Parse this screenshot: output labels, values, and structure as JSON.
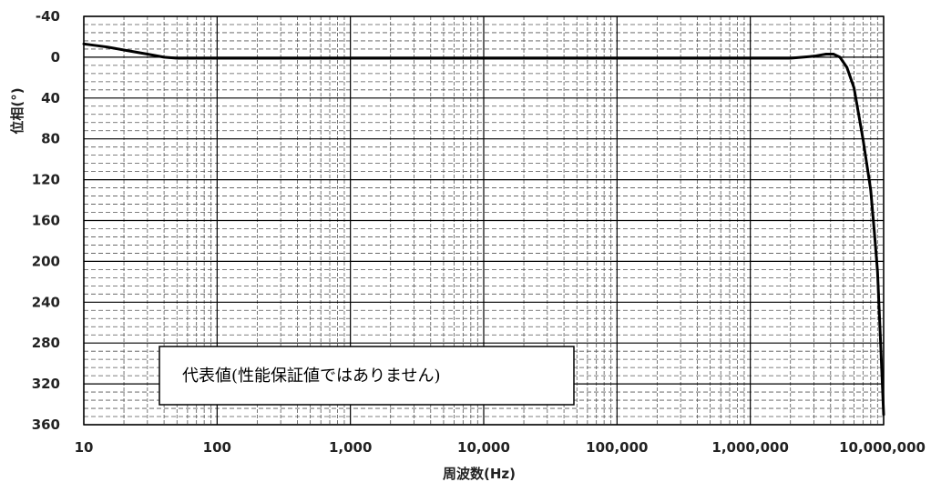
{
  "chart_data": {
    "type": "line",
    "xlabel": "周波数(Hz)",
    "ylabel": "位相(°)",
    "x_scale": "log",
    "xlim": [
      10,
      10000000
    ],
    "ylim": [
      -40,
      360
    ],
    "y_inverted": true,
    "grid": true,
    "x_tick_labels": [
      "10",
      "100",
      "1,000",
      "10,000",
      "100,000",
      "1,000,000",
      "10,000,000"
    ],
    "y_tick_labels": [
      "-40",
      "0",
      "40",
      "80",
      "120",
      "160",
      "200",
      "240",
      "280",
      "320",
      "360"
    ],
    "annotation": "代表値(性能保証値ではありません)",
    "series": [
      {
        "x": [
          10,
          15,
          20,
          30,
          40,
          50,
          100,
          1000,
          10000,
          100000,
          1000000,
          2000000,
          3000000,
          3700000,
          4200000,
          4700000,
          5300000,
          6000000,
          7000000,
          8000000,
          8500000,
          9000000,
          9500000,
          10000000
        ],
        "values": [
          -13,
          -10,
          -7,
          -3,
          0,
          1,
          1,
          1,
          1,
          1,
          1,
          1,
          -1,
          -3,
          -3,
          0,
          10,
          30,
          80,
          130,
          170,
          210,
          280,
          350
        ]
      }
    ]
  }
}
